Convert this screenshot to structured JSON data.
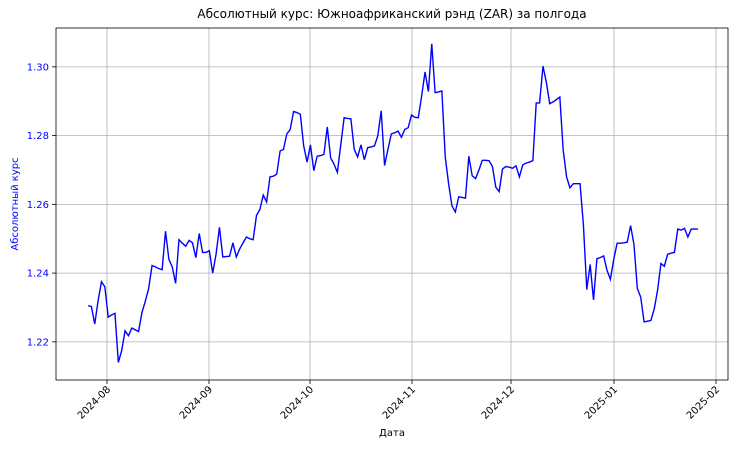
{
  "chart_data": {
    "type": "line",
    "title": "Абсолютный курс: Южноафриканский рэнд (ZAR) за полгода",
    "x_label": "Дата",
    "y_label": "Абсолютный курс",
    "color": "#0000ff",
    "y_label_color": "#0000ff",
    "grid": true,
    "ylim": [
      1.2089,
      1.3113
    ],
    "yticks": [
      1.22,
      1.24,
      1.26,
      1.28,
      {
        "value": 1.3,
        "label": "1.30"
      }
    ],
    "xticks": [
      "2024-08",
      "2024-09",
      "2024-10",
      "2024-11",
      "2024-12",
      "2025-01",
      "2025-02"
    ],
    "values": [
      1.2305,
      1.2303,
      1.2252,
      1.232,
      1.2375,
      1.236,
      1.2272,
      1.2278,
      1.2283,
      1.214,
      1.2175,
      1.2232,
      1.2218,
      1.224,
      1.2235,
      1.223,
      1.2285,
      1.2318,
      1.2355,
      1.2422,
      1.2418,
      1.2413,
      1.241,
      1.2522,
      1.244,
      1.2418,
      1.237,
      1.2497,
      1.2487,
      1.2478,
      1.2495,
      1.2488,
      1.2445,
      1.2515,
      1.246,
      1.246,
      1.2465,
      1.24,
      1.2455,
      1.2533,
      1.2447,
      1.2448,
      1.2449,
      1.2488,
      1.2447,
      1.247,
      1.2488,
      1.2505,
      1.25,
      1.2497,
      1.2568,
      1.2585,
      1.2627,
      1.2607,
      1.268,
      1.2682,
      1.2688,
      1.2755,
      1.276,
      1.2805,
      1.2818,
      1.287,
      1.2867,
      1.2862,
      1.277,
      1.2723,
      1.2773,
      1.2698,
      1.274,
      1.2742,
      1.2745,
      1.2825,
      1.2735,
      1.2717,
      1.2693,
      1.2773,
      1.2852,
      1.285,
      1.2849,
      1.276,
      1.2738,
      1.2773,
      1.273,
      1.2765,
      1.2767,
      1.277,
      1.28,
      1.2872,
      1.2713,
      1.276,
      1.2805,
      1.2808,
      1.2813,
      1.2795,
      1.2818,
      1.2823,
      1.286,
      1.2853,
      1.2852,
      1.2915,
      1.2985,
      1.2928,
      1.3067,
      1.2925,
      1.2927,
      1.293,
      1.2738,
      1.266,
      1.2595,
      1.2578,
      1.2622,
      1.262,
      1.2618,
      1.274,
      1.2683,
      1.2675,
      1.27,
      1.2728,
      1.2728,
      1.2727,
      1.271,
      1.265,
      1.2637,
      1.2703,
      1.271,
      1.2708,
      1.2705,
      1.2712,
      1.268,
      1.2715,
      1.272,
      1.2723,
      1.2727,
      1.2895,
      1.2895,
      1.3002,
      1.2955,
      1.2893,
      1.2898,
      1.2905,
      1.2912,
      1.2758,
      1.268,
      1.2648,
      1.266,
      1.266,
      1.266,
      1.254,
      1.2352,
      1.2425,
      1.2322,
      1.2442,
      1.2445,
      1.245,
      1.2408,
      1.2382,
      1.244,
      1.2487,
      1.2487,
      1.2488,
      1.249,
      1.2538,
      1.2483,
      1.2355,
      1.233,
      1.2258,
      1.226,
      1.2262,
      1.2295,
      1.235,
      1.2428,
      1.242,
      1.2455,
      1.2458,
      1.246,
      1.2528,
      1.2525,
      1.253,
      1.2505,
      1.2528,
      1.2528,
      1.2528
    ]
  }
}
